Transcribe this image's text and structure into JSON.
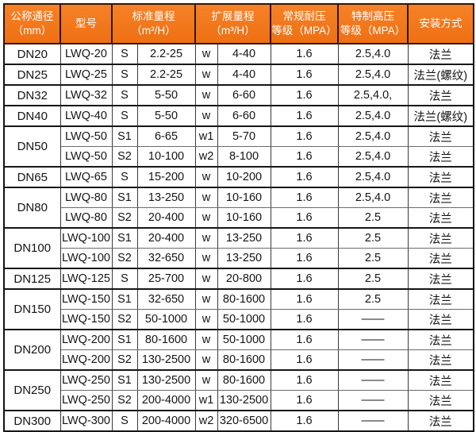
{
  "colors": {
    "header_bg_top": "#f68127",
    "header_bg_bottom": "#ee7013",
    "header_text": "#ffffff",
    "grid_border": "#1a1a1a",
    "body_text": "#141414"
  },
  "table": {
    "columns": [
      {
        "id": "nominal-diameter",
        "line1": "公称通径",
        "line2": "（mm）",
        "colspan": 1
      },
      {
        "id": "model",
        "line1": "型号",
        "line2": "",
        "colspan": 1
      },
      {
        "id": "standard-range",
        "line1": "标准量程",
        "line2": "（m³/H）",
        "colspan": 2
      },
      {
        "id": "extended-range",
        "line1": "扩展量程",
        "line2": "（m³/H）",
        "colspan": 2
      },
      {
        "id": "regular-pressure",
        "line1": "常规耐压",
        "line2": "等级（MPA）",
        "colspan": 1
      },
      {
        "id": "high-pressure",
        "line1": "特制高压",
        "line2": "等级（MPA）",
        "colspan": 1
      },
      {
        "id": "installation",
        "line1": "安装方式",
        "line2": "",
        "colspan": 1
      }
    ],
    "rows": [
      {
        "dn": "DN20",
        "dn_span": 1,
        "model": "LWQ-20",
        "s_code": "S",
        "std_range": "2.2-25",
        "w_code": "w",
        "ext_range": "4-40",
        "regular_mpa": "1.6",
        "high_mpa": "2.5,4.0",
        "install": "法兰"
      },
      {
        "dn": "DN25",
        "dn_span": 1,
        "model": "LWQ-25",
        "s_code": "S",
        "std_range": "2.2-25",
        "w_code": "w",
        "ext_range": "4-40",
        "regular_mpa": "1.6",
        "high_mpa": "2.5,4.0",
        "install": "法兰(螺纹)"
      },
      {
        "dn": "DN32",
        "dn_span": 1,
        "model": "LWQ-32",
        "s_code": "S",
        "std_range": "5-50",
        "w_code": "w",
        "ext_range": "6-60",
        "regular_mpa": "1.6",
        "high_mpa": "2.5,4.0,",
        "install": "法兰"
      },
      {
        "dn": "DN40",
        "dn_span": 1,
        "model": "LWQ-40",
        "s_code": "S",
        "std_range": "5-50",
        "w_code": "w",
        "ext_range": "6-60",
        "regular_mpa": "1.6",
        "high_mpa": "2.5,4.0",
        "install": "法兰(螺纹)"
      },
      {
        "dn": "DN50",
        "dn_span": 2,
        "model": "LWQ-50",
        "s_code": "S1",
        "std_range": "6-65",
        "w_code": "w1",
        "ext_range": "5-70",
        "regular_mpa": "1.6",
        "high_mpa": "2.5,4.0",
        "install": "法兰"
      },
      {
        "dn": null,
        "dn_span": 0,
        "model": "LWQ-50",
        "s_code": "S2",
        "std_range": "10-100",
        "w_code": "w2",
        "ext_range": "8-100",
        "regular_mpa": "1.6",
        "high_mpa": "2.5,4.0",
        "install": "法兰"
      },
      {
        "dn": "DN65",
        "dn_span": 1,
        "model": "LWQ-65",
        "s_code": "S",
        "std_range": "15-200",
        "w_code": "w",
        "ext_range": "10-200",
        "regular_mpa": "1.6",
        "high_mpa": "2.5,4.0",
        "install": "法兰"
      },
      {
        "dn": "DN80",
        "dn_span": 2,
        "model": "LWQ-80",
        "s_code": "S1",
        "std_range": "13-250",
        "w_code": "w",
        "ext_range": "10-160",
        "regular_mpa": "1.6",
        "high_mpa": "2.5,4.0",
        "install": "法兰"
      },
      {
        "dn": null,
        "dn_span": 0,
        "model": "LWQ-80",
        "s_code": "S2",
        "std_range": "20-400",
        "w_code": "w",
        "ext_range": "10-160",
        "regular_mpa": "1.6",
        "high_mpa": "2.5",
        "install": "法兰"
      },
      {
        "dn": "DN100",
        "dn_span": 2,
        "model": "LWQ-100",
        "s_code": "S1",
        "std_range": "20-400",
        "w_code": "w",
        "ext_range": "13-250",
        "regular_mpa": "1.6",
        "high_mpa": "2.5",
        "install": "法兰"
      },
      {
        "dn": null,
        "dn_span": 0,
        "model": "LWQ-100",
        "s_code": "S2",
        "std_range": "32-650",
        "w_code": "w",
        "ext_range": "13-250",
        "regular_mpa": "1.6",
        "high_mpa": "2.5",
        "install": "法兰"
      },
      {
        "dn": "DN125",
        "dn_span": 1,
        "model": "LWQ-125",
        "s_code": "S",
        "std_range": "25-700",
        "w_code": "w",
        "ext_range": "20-800",
        "regular_mpa": "1.6",
        "high_mpa": "2.5",
        "install": "法兰"
      },
      {
        "dn": "DN150",
        "dn_span": 2,
        "model": "LWQ-150",
        "s_code": "S1",
        "std_range": "32-650",
        "w_code": "w",
        "ext_range": "80-1600",
        "regular_mpa": "1.6",
        "high_mpa": "2.5",
        "install": "法兰"
      },
      {
        "dn": null,
        "dn_span": 0,
        "model": "LWQ-150",
        "s_code": "S2",
        "std_range": "50-1000",
        "w_code": "w",
        "ext_range": "50-1000",
        "regular_mpa": "1.6",
        "high_mpa": "——",
        "install": "法兰"
      },
      {
        "dn": "DN200",
        "dn_span": 2,
        "model": "LWQ-200",
        "s_code": "S1",
        "std_range": "80-1600",
        "w_code": "w",
        "ext_range": "50-1000",
        "regular_mpa": "1.6",
        "high_mpa": "——",
        "install": "法兰"
      },
      {
        "dn": null,
        "dn_span": 0,
        "model": "LWQ-200",
        "s_code": "S2",
        "std_range": "130-2500",
        "w_code": "w",
        "ext_range": "80-1600",
        "regular_mpa": "1.6",
        "high_mpa": "——",
        "install": "法兰"
      },
      {
        "dn": "DN250",
        "dn_span": 2,
        "model": "LWQ-250",
        "s_code": "S1",
        "std_range": "130-2500",
        "w_code": "w",
        "ext_range": "80-1600",
        "regular_mpa": "1.6",
        "high_mpa": "——",
        "install": "法兰"
      },
      {
        "dn": null,
        "dn_span": 0,
        "model": "LWQ-250",
        "s_code": "S2",
        "std_range": "200-4000",
        "w_code": "w1",
        "ext_range": "130-2500",
        "regular_mpa": "1.6",
        "high_mpa": "——",
        "install": "法兰"
      },
      {
        "dn": "DN300",
        "dn_span": 1,
        "model": "LWQ-300",
        "s_code": "S",
        "std_range": "200-4000",
        "w_code": "w2",
        "ext_range": "320-6500",
        "regular_mpa": "1.6",
        "high_mpa": "——",
        "install": "法兰"
      }
    ]
  }
}
